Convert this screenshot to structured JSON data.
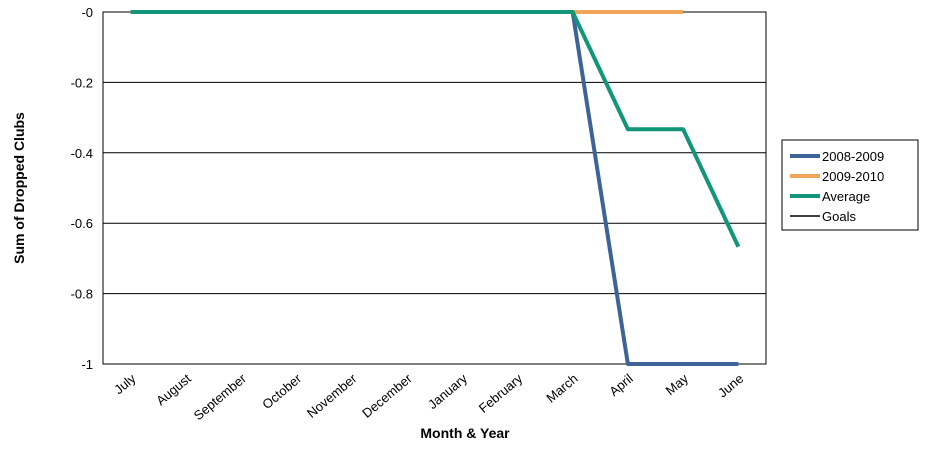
{
  "chart_data": {
    "type": "line",
    "x_label": "Month & Year",
    "y_label": "Sum of Dropped Clubs",
    "categories": [
      "July",
      "August",
      "September",
      "October",
      "November",
      "December",
      "January",
      "February",
      "March",
      "April",
      "May",
      "June"
    ],
    "series": [
      {
        "name": "2008-2009",
        "color": "#3d6398",
        "values": [
          0,
          0,
          0,
          0,
          0,
          0,
          0,
          0,
          0,
          -1,
          -1,
          -1
        ]
      },
      {
        "name": "2009-2010",
        "color": "#f0a55a",
        "values": [
          0,
          0,
          0,
          0,
          0,
          0,
          0,
          0,
          0,
          0,
          0,
          null
        ]
      },
      {
        "name": "Average",
        "color": "#12967a",
        "values": [
          0,
          0,
          0,
          0,
          0,
          0,
          0,
          0,
          0,
          -0.333,
          -0.333,
          -0.667
        ]
      },
      {
        "name": "Goals",
        "color": "#000000",
        "values": [
          null,
          null,
          null,
          null,
          null,
          null,
          null,
          null,
          null,
          null,
          null,
          null
        ]
      }
    ],
    "ylim": [
      -1,
      0
    ],
    "yticks": [
      {
        "value": 0,
        "label": "-0"
      },
      -0.2,
      -0.4,
      -0.6,
      -0.8,
      -1
    ],
    "grid": true,
    "legend": "right"
  }
}
